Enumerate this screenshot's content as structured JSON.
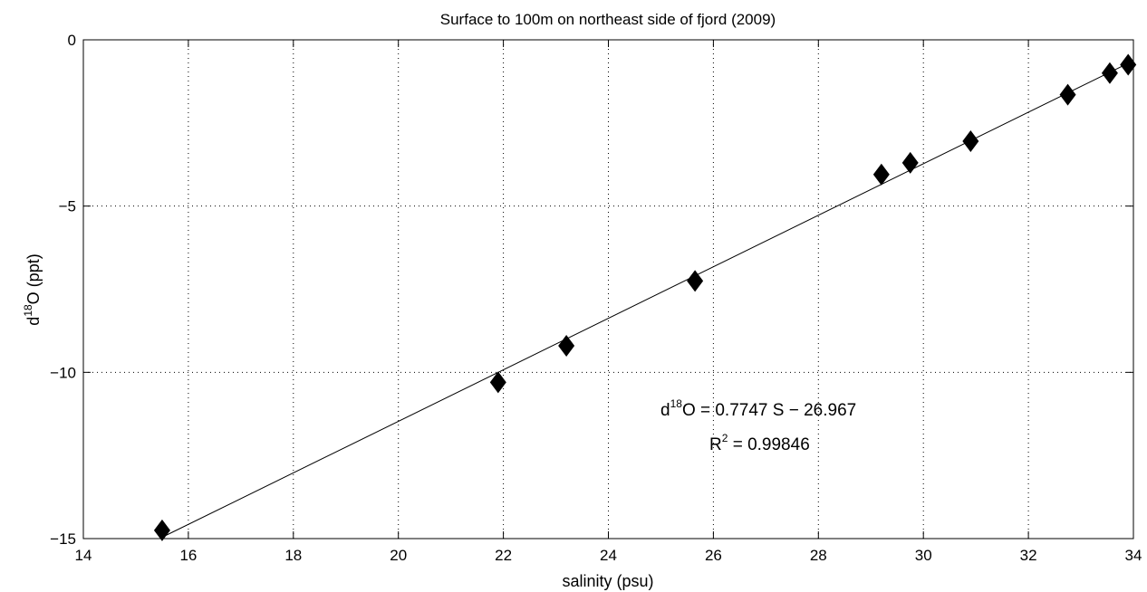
{
  "chart_data": {
    "type": "scatter",
    "title": "Surface  to 100m  on northeast  side  of fjord (2009)",
    "xlabel": "salinity  (psu)",
    "ylabel": {
      "pre": "d",
      "sup": "18",
      "post": "O  (ppt)"
    },
    "xlim": [
      14,
      34
    ],
    "ylim": [
      -15,
      0
    ],
    "xticks": [
      14,
      16,
      18,
      20,
      22,
      24,
      26,
      28,
      30,
      32,
      34
    ],
    "yticks": [
      0,
      -5,
      -10,
      -15
    ],
    "grid": true,
    "marker": "diamond",
    "marker_color": "#000000",
    "points": [
      {
        "x": 15.5,
        "y": -14.75
      },
      {
        "x": 21.9,
        "y": -10.3
      },
      {
        "x": 23.2,
        "y": -9.2
      },
      {
        "x": 25.65,
        "y": -7.25
      },
      {
        "x": 29.2,
        "y": -4.05
      },
      {
        "x": 29.75,
        "y": -3.7
      },
      {
        "x": 30.9,
        "y": -3.05
      },
      {
        "x": 32.75,
        "y": -1.65
      },
      {
        "x": 33.55,
        "y": -1.0
      },
      {
        "x": 33.9,
        "y": -0.75
      }
    ],
    "fit": {
      "slope": 0.7747,
      "intercept": -26.967,
      "x_range": [
        15.5,
        34
      ]
    },
    "annotation": {
      "line1": {
        "pre": "d",
        "sup": "18",
        "post": "O = 0.7747  S  − 26.967"
      },
      "line2": {
        "pre": "R",
        "sup": "2",
        "post": " = 0.99846"
      }
    }
  }
}
